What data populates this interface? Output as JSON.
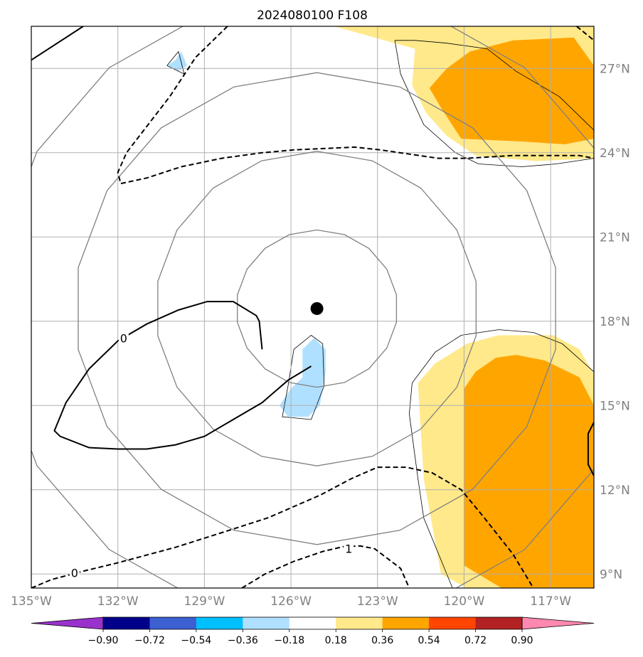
{
  "chart_data": {
    "type": "map",
    "title": "2024080100 F108",
    "projection": "lat-lon",
    "extent": {
      "lon": [
        -135,
        -115.5
      ],
      "lat": [
        8.5,
        28.5
      ]
    },
    "grid": true,
    "x_ticks": [
      {
        "value": -135,
        "label": "135°W"
      },
      {
        "value": -132,
        "label": "132°W"
      },
      {
        "value": -129,
        "label": "129°W"
      },
      {
        "value": -126,
        "label": "126°W"
      },
      {
        "value": -123,
        "label": "123°W"
      },
      {
        "value": -120,
        "label": "120°W"
      },
      {
        "value": -117,
        "label": "117°W"
      }
    ],
    "y_ticks": [
      {
        "value": 9,
        "label": "9°N"
      },
      {
        "value": 12,
        "label": "12°N"
      },
      {
        "value": 15,
        "label": "15°N"
      },
      {
        "value": 18,
        "label": "18°N"
      },
      {
        "value": 21,
        "label": "21°N"
      },
      {
        "value": 24,
        "label": "24°N"
      },
      {
        "value": 27,
        "label": "27°N"
      }
    ],
    "storm_center": {
      "lon": -125.1,
      "lat": 18.45
    },
    "range_rings_deg": [
      2.8,
      5.6,
      8.4,
      11.2
    ],
    "colorbar": {
      "levels": [
        "−0.90",
        "−0.72",
        "−0.54",
        "−0.36",
        "−0.18",
        "0.18",
        "0.36",
        "0.54",
        "0.72",
        "0.90"
      ],
      "colors": [
        "#9932CC",
        "#00008B",
        "#3C5FD2",
        "#00BFFF",
        "#B0E0FF",
        "#FFFFFF",
        "#FFE98A",
        "#FFA500",
        "#FF4500",
        "#B22222",
        "#FF88B0"
      ],
      "extend": "both"
    },
    "shaded_regions": [
      {
        "value_class": "0.18–0.36",
        "color": "#FFE98A",
        "polygon": [
          [
            -124.5,
            28.5
          ],
          [
            -115.5,
            28.5
          ],
          [
            -115.5,
            23.8
          ],
          [
            -117.5,
            23.7
          ],
          [
            -119.6,
            23.9
          ],
          [
            -120.6,
            24.6
          ],
          [
            -121.3,
            25.4
          ],
          [
            -121.8,
            26.4
          ],
          [
            -121.7,
            27.7
          ]
        ]
      },
      {
        "value_class": "0.36–0.54",
        "color": "#FFA500",
        "polygon": [
          [
            -118.3,
            28.0
          ],
          [
            -116.2,
            28.1
          ],
          [
            -115.5,
            27.1
          ],
          [
            -115.5,
            24.5
          ],
          [
            -116.5,
            24.3
          ],
          [
            -118.0,
            24.4
          ],
          [
            -120.1,
            24.5
          ],
          [
            -120.8,
            25.6
          ],
          [
            -121.2,
            26.3
          ],
          [
            -120.6,
            27.0
          ],
          [
            -119.8,
            27.6
          ]
        ]
      },
      {
        "value_class": "0.18–0.36",
        "color": "#FFE98A",
        "polygon": [
          [
            -120.8,
            9.0
          ],
          [
            -121.4,
            12.4
          ],
          [
            -121.6,
            15.8
          ],
          [
            -121.0,
            16.5
          ],
          [
            -119.9,
            17.2
          ],
          [
            -118.8,
            17.5
          ],
          [
            -116.9,
            17.5
          ],
          [
            -116.0,
            17.0
          ],
          [
            -115.5,
            16.1
          ],
          [
            -115.5,
            8.5
          ],
          [
            -119.9,
            8.5
          ]
        ]
      },
      {
        "value_class": "0.36–0.54",
        "color": "#FFA500",
        "polygon": [
          [
            -120.0,
            9.3
          ],
          [
            -120.0,
            15.6
          ],
          [
            -119.6,
            16.2
          ],
          [
            -118.9,
            16.7
          ],
          [
            -118.2,
            16.8
          ],
          [
            -117.2,
            16.6
          ],
          [
            -116.0,
            16.0
          ],
          [
            -115.5,
            15.0
          ],
          [
            -115.5,
            8.5
          ],
          [
            -118.7,
            8.5
          ]
        ]
      },
      {
        "value_class": "−0.36–−0.18",
        "color": "#B0E0FF",
        "polygon": [
          [
            -125.6,
            17.0
          ],
          [
            -125.2,
            17.4
          ],
          [
            -124.8,
            17.0
          ],
          [
            -124.8,
            16.2
          ],
          [
            -125.0,
            15.0
          ],
          [
            -125.4,
            14.6
          ],
          [
            -126.1,
            14.6
          ],
          [
            -126.4,
            15.0
          ],
          [
            -126.0,
            15.6
          ],
          [
            -125.6,
            16.0
          ]
        ]
      },
      {
        "value_class": "−0.36–−0.18",
        "color": "#B0E0FF",
        "polygon": [
          [
            -130.0,
            27.3
          ],
          [
            -129.8,
            27.6
          ],
          [
            -129.6,
            27.1
          ],
          [
            -129.9,
            26.9
          ],
          [
            -130.3,
            27.1
          ]
        ]
      }
    ],
    "dashed_contours": [
      {
        "label": "",
        "points": [
          [
            -128.2,
            28.5
          ],
          [
            -129.3,
            27.4
          ],
          [
            -130.2,
            26.0
          ],
          [
            -131.1,
            24.8
          ],
          [
            -131.7,
            24.0
          ],
          [
            -132.0,
            23.3
          ],
          [
            -131.9,
            22.9
          ],
          [
            -131.0,
            23.1
          ],
          [
            -129.8,
            23.5
          ],
          [
            -128.4,
            23.8
          ],
          [
            -127.0,
            24.0
          ],
          [
            -125.9,
            24.1
          ],
          [
            -123.8,
            24.2
          ],
          [
            -122.9,
            24.1
          ],
          [
            -120.9,
            23.8
          ],
          [
            -119.9,
            23.8
          ],
          [
            -118.3,
            23.9
          ],
          [
            -116.0,
            23.9
          ],
          [
            -115.5,
            23.8
          ]
        ]
      },
      {
        "label": "0",
        "label_at": [
          -133.5,
          9.05
        ],
        "points": [
          [
            -135,
            8.5
          ],
          [
            -134.3,
            8.8
          ],
          [
            -133.2,
            9.1
          ],
          [
            -132.0,
            9.4
          ],
          [
            -130.0,
            9.95
          ],
          [
            -128.0,
            10.6
          ],
          [
            -126.8,
            11.0
          ],
          [
            -125.0,
            11.8
          ],
          [
            -123.9,
            12.4
          ],
          [
            -123.0,
            12.8
          ],
          [
            -122.0,
            12.8
          ],
          [
            -121.1,
            12.6
          ],
          [
            -120.1,
            12.0
          ],
          [
            -119.3,
            11.0
          ],
          [
            -118.3,
            9.7
          ],
          [
            -117.6,
            8.5
          ]
        ]
      },
      {
        "label": "1",
        "label_at": [
          -124.0,
          9.9
        ],
        "points": [
          [
            -127.7,
            8.5
          ],
          [
            -126.9,
            9.0
          ],
          [
            -125.9,
            9.45
          ],
          [
            -124.9,
            9.8
          ],
          [
            -124.2,
            9.97
          ],
          [
            -123.6,
            10.0
          ],
          [
            -123.1,
            9.9
          ],
          [
            -122.2,
            9.2
          ],
          [
            -121.9,
            8.5
          ]
        ]
      },
      {
        "label": "",
        "points": [
          [
            -116.1,
            28.5
          ],
          [
            -115.5,
            28.0
          ]
        ]
      }
    ],
    "solid_contours": [
      {
        "label": "",
        "points": [
          [
            -135,
            27.3
          ],
          [
            -133.2,
            28.5
          ]
        ]
      },
      {
        "label": "0",
        "label_at": [
          -131.8,
          17.4
        ],
        "points": [
          [
            -127.0,
            17.0
          ],
          [
            -127.1,
            18.0
          ],
          [
            -127.2,
            18.2
          ],
          [
            -128.0,
            18.7
          ],
          [
            -128.9,
            18.7
          ],
          [
            -129.9,
            18.4
          ],
          [
            -131.0,
            17.9
          ],
          [
            -132.0,
            17.3
          ],
          [
            -133.0,
            16.3
          ],
          [
            -133.8,
            15.1
          ],
          [
            -134.0,
            14.6
          ],
          [
            -134.2,
            14.1
          ],
          [
            -134.0,
            13.9
          ],
          [
            -133.0,
            13.5
          ],
          [
            -132.0,
            13.45
          ],
          [
            -131.0,
            13.45
          ],
          [
            -130.0,
            13.6
          ],
          [
            -129.0,
            13.9
          ],
          [
            -128.0,
            14.5
          ],
          [
            -127.0,
            15.1
          ],
          [
            -126.1,
            15.9
          ],
          [
            -125.3,
            16.4
          ]
        ]
      },
      {
        "label": "",
        "points": [
          [
            -115.5,
            14.4
          ],
          [
            -115.7,
            14.0
          ],
          [
            -115.7,
            12.9
          ],
          [
            -115.5,
            12.5
          ]
        ]
      }
    ],
    "outlines": [
      [
        [
          -122.4,
          28.0
        ],
        [
          -121.7,
          28.0
        ],
        [
          -120.6,
          27.9
        ],
        [
          -119.2,
          27.7
        ],
        [
          -118.2,
          26.9
        ],
        [
          -116.7,
          26.0
        ],
        [
          -115.5,
          24.8
        ]
      ],
      [
        [
          -122.4,
          28.0
        ],
        [
          -122.2,
          26.8
        ],
        [
          -121.4,
          25.0
        ],
        [
          -120.3,
          24.0
        ],
        [
          -119.5,
          23.6
        ],
        [
          -118.0,
          23.5
        ],
        [
          -116.8,
          23.6
        ],
        [
          -115.5,
          23.8
        ]
      ],
      [
        [
          -120.4,
          8.5
        ],
        [
          -121.4,
          11.0
        ],
        [
          -121.6,
          12.4
        ],
        [
          -121.9,
          14.7
        ],
        [
          -121.8,
          15.8
        ],
        [
          -121.0,
          16.9
        ],
        [
          -120.1,
          17.5
        ],
        [
          -118.8,
          17.7
        ],
        [
          -117.6,
          17.6
        ],
        [
          -116.6,
          17.2
        ],
        [
          -115.5,
          16.2
        ]
      ],
      [
        [
          -125.9,
          17.0
        ],
        [
          -125.3,
          17.5
        ],
        [
          -124.9,
          17.2
        ],
        [
          -124.85,
          15.7
        ],
        [
          -125.3,
          14.5
        ],
        [
          -126.3,
          14.6
        ],
        [
          -126.1,
          15.7
        ],
        [
          -125.9,
          17.0
        ]
      ],
      [
        [
          -130.3,
          27.1
        ],
        [
          -129.9,
          27.6
        ],
        [
          -129.7,
          26.8
        ],
        [
          -130.3,
          27.1
        ]
      ]
    ]
  }
}
